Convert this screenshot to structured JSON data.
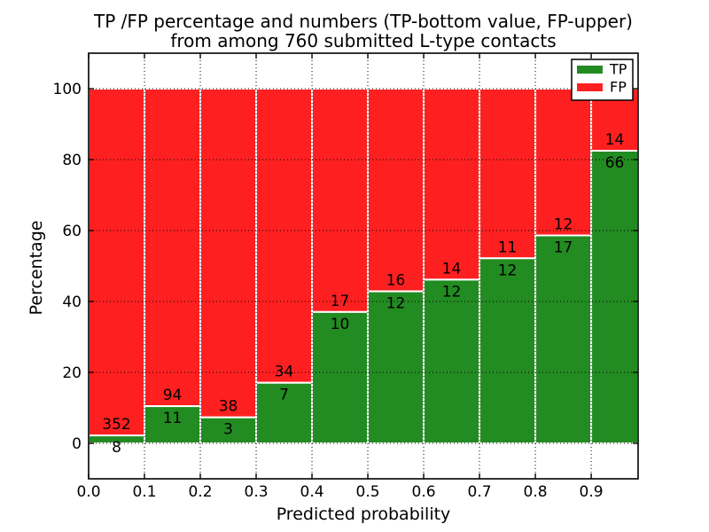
{
  "chart_data": {
    "type": "bar",
    "stacked": true,
    "normalized_to_percent": true,
    "title_lines": [
      "TP /FP percentage and numbers (TP-bottom value, FP-upper)",
      "from among 760 submitted L-type contacts"
    ],
    "xlabel": "Predicted probability",
    "ylabel": "Percentage",
    "total_contacts": 760,
    "categories": [
      "0.0-0.1",
      "0.1-0.2",
      "0.2-0.3",
      "0.3-0.4",
      "0.4-0.5",
      "0.5-0.6",
      "0.6-0.7",
      "0.7-0.8",
      "0.8-0.9",
      "0.9-1.0"
    ],
    "bin_edges": [
      0.0,
      0.1,
      0.2,
      0.3,
      0.4,
      0.5,
      0.6,
      0.7,
      0.8,
      0.9,
      1.0
    ],
    "series": [
      {
        "name": "TP",
        "color": "#228b22",
        "counts": [
          8,
          11,
          3,
          7,
          10,
          12,
          12,
          12,
          17,
          66
        ],
        "percent": [
          2.22,
          10.48,
          7.32,
          17.07,
          37.04,
          42.86,
          46.15,
          52.17,
          58.62,
          82.5
        ]
      },
      {
        "name": "FP",
        "color": "#fe2020",
        "counts": [
          352,
          94,
          38,
          34,
          17,
          16,
          14,
          11,
          12,
          14
        ],
        "percent": [
          97.78,
          89.52,
          92.68,
          82.93,
          62.96,
          57.14,
          53.85,
          47.83,
          41.38,
          17.5
        ]
      }
    ],
    "x_ticks": [
      0.0,
      0.1,
      0.2,
      0.3,
      0.4,
      0.5,
      0.6,
      0.7,
      0.8,
      0.9
    ],
    "x_tick_labels": [
      "0.0",
      "0.1",
      "0.2",
      "0.3",
      "0.4",
      "0.5",
      "0.6",
      "0.7",
      "0.8",
      "0.9"
    ],
    "y_ticks": [
      0,
      20,
      40,
      60,
      80,
      100
    ],
    "y_tick_labels": [
      "0",
      "20",
      "40",
      "60",
      "80",
      "100"
    ],
    "xlim": [
      0.0,
      0.984
    ],
    "ylim": [
      -10,
      110
    ],
    "grid": {
      "visible": true,
      "style": "dotted",
      "color": "#000000"
    },
    "legend": {
      "position": "upper-right",
      "entries": [
        {
          "label": "TP",
          "color": "#228b22"
        },
        {
          "label": "FP",
          "color": "#fe2020"
        }
      ]
    },
    "bar_edge_color": "#ffffff",
    "background": "#ffffff"
  }
}
